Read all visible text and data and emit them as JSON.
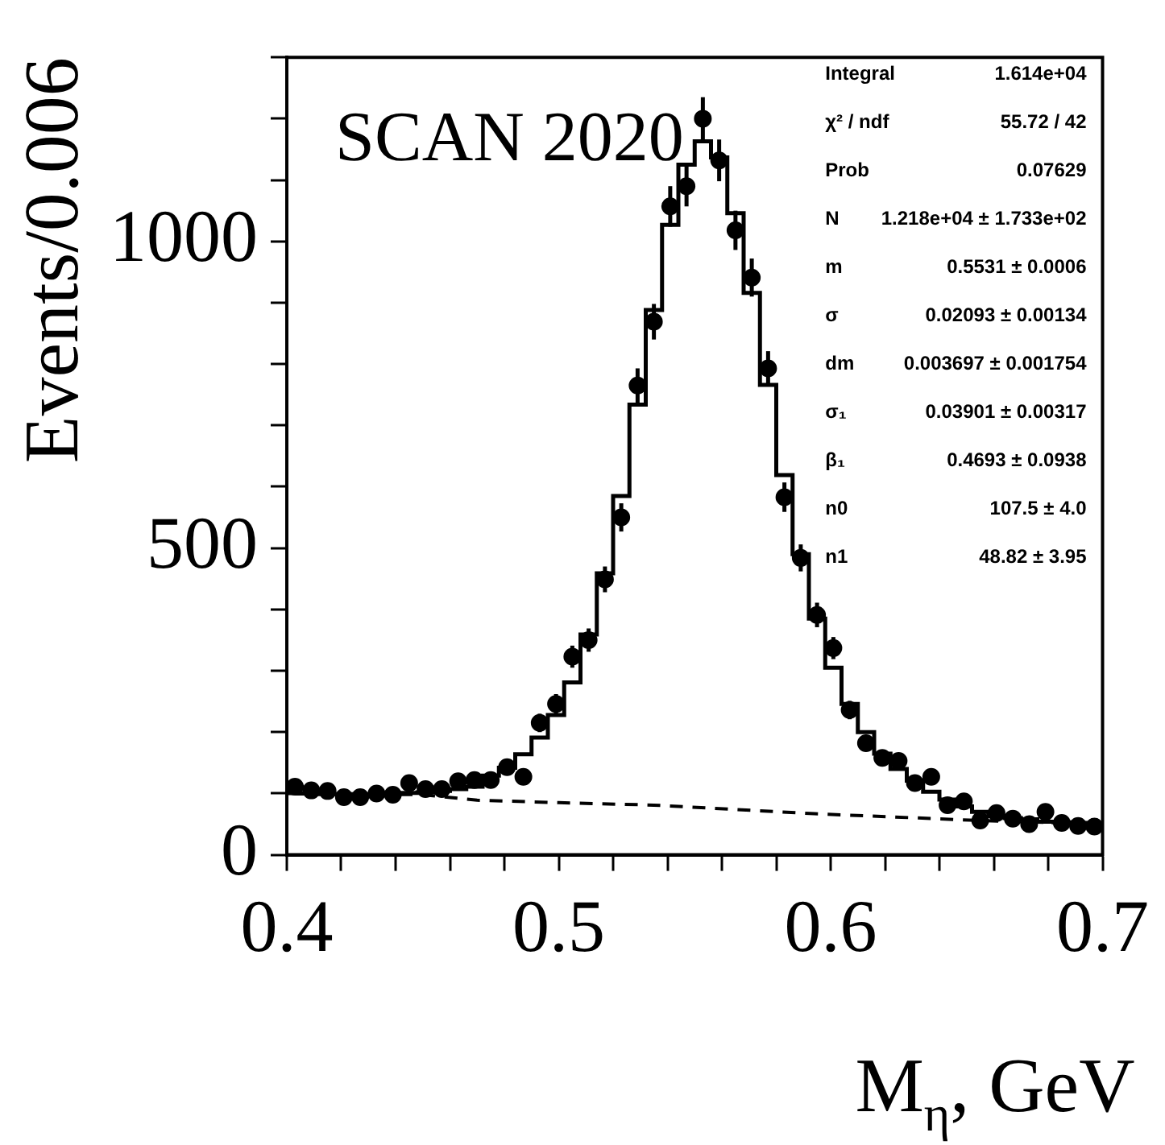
{
  "chart_data": {
    "type": "scatter",
    "xlabel": "M$_{η}$, GeV",
    "ylabel": "Events/0.006",
    "x": [
      0.403,
      0.409,
      0.415,
      0.421,
      0.427,
      0.433,
      0.439,
      0.445,
      0.451,
      0.457,
      0.463,
      0.469,
      0.475,
      0.481,
      0.487,
      0.493,
      0.499,
      0.505,
      0.511,
      0.517,
      0.523,
      0.529,
      0.535,
      0.541,
      0.547,
      0.553,
      0.559,
      0.565,
      0.571,
      0.577,
      0.583,
      0.589,
      0.595,
      0.601,
      0.607,
      0.613,
      0.619,
      0.625,
      0.631,
      0.637,
      0.643,
      0.649,
      0.655,
      0.661,
      0.667,
      0.673,
      0.679,
      0.685,
      0.691,
      0.697
    ],
    "series": [
      {
        "color": "#000000",
        "marker": "circle",
        "values": [
          111,
          105,
          104,
          94,
          94,
          100,
          98,
          117,
          107,
          107,
          120,
          122,
          122,
          143,
          127,
          215,
          246,
          323,
          350,
          449,
          550,
          765,
          869,
          1057,
          1090,
          1200,
          1132,
          1018,
          941,
          793,
          583,
          484,
          391,
          337,
          236,
          182,
          158,
          153,
          117,
          127,
          81,
          87,
          56,
          68,
          59,
          50,
          70,
          52,
          47,
          46
        ],
        "errors": [
          11,
          10,
          10,
          10,
          10,
          10,
          10,
          11,
          10,
          10,
          11,
          11,
          11,
          12,
          11,
          15,
          16,
          18,
          19,
          21,
          23,
          28,
          29,
          33,
          33,
          35,
          34,
          32,
          31,
          28,
          24,
          22,
          20,
          18,
          15,
          13,
          13,
          12,
          11,
          11,
          9,
          9,
          7,
          8,
          8,
          7,
          8,
          7,
          7,
          7
        ]
      },
      {
        "type": "step",
        "color": "#000000",
        "line_style": "solid",
        "values": [
          100,
          100,
          99,
          99,
          99,
          99,
          100,
          101,
          102,
          104,
          107,
          111,
          129,
          142,
          164,
          191,
          228,
          281,
          359,
          459,
          585,
          734,
          888,
          1027,
          1125,
          1163,
          1137,
          1046,
          916,
          766,
          619,
          490,
          385,
          305,
          246,
          200,
          165,
          140,
          121,
          103,
          90,
          79,
          70,
          63,
          60,
          58,
          54,
          53,
          52,
          51
        ]
      },
      {
        "type": "line",
        "color": "#000000",
        "line_style": "dashed",
        "marker": "none",
        "x": [
          0.4,
          0.45,
          0.47,
          0.5,
          0.535,
          0.594,
          0.654,
          0.7
        ],
        "values": [
          100,
          98,
          89,
          85,
          81,
          67,
          56,
          50
        ]
      }
    ],
    "xlim": [
      0.4,
      0.7
    ],
    "xticks": [
      0.4,
      {
        "value": 0.42,
        "label": null
      },
      {
        "value": 0.44,
        "label": null
      },
      {
        "value": 0.46,
        "label": null
      },
      {
        "value": 0.48,
        "label": null
      },
      0.5,
      {
        "value": 0.52,
        "label": null
      },
      {
        "value": 0.54,
        "label": null
      },
      {
        "value": 0.56,
        "label": null
      },
      {
        "value": 0.58,
        "label": null
      },
      0.6,
      {
        "value": 0.62,
        "label": null
      },
      {
        "value": 0.64,
        "label": null
      },
      {
        "value": 0.66,
        "label": null
      },
      {
        "value": 0.68,
        "label": null
      },
      0.7
    ],
    "ylim": [
      0,
      1300
    ],
    "yticks": [
      0,
      {
        "value": 100,
        "label": null
      },
      {
        "value": 200,
        "label": null
      },
      {
        "value": 300,
        "label": null
      },
      {
        "value": 400,
        "label": null
      },
      500,
      {
        "value": 600,
        "label": null
      },
      {
        "value": 700,
        "label": null
      },
      {
        "value": 800,
        "label": null
      },
      {
        "value": 900,
        "label": null
      },
      1000,
      {
        "value": 1100,
        "label": null
      },
      {
        "value": 1200,
        "label": null
      },
      {
        "value": 1300,
        "label": null
      }
    ],
    "grid": false,
    "legend": false,
    "annotations": [
      "SCAN 2020",
      "Integral",
      "1.614e+04",
      "χ² / ndf",
      "55.72 / 42",
      "Prob",
      "0.07629",
      "N",
      "1.218e+04 ± 1.733e+02",
      "m",
      "0.5531 ± 0.0006",
      "σ",
      "0.02093 ± 0.00134",
      "dm",
      "0.003697 ± 0.001754",
      "σ₁",
      "0.03901 ± 0.00317",
      "β₁",
      "0.4693 ± 0.0938",
      "n0",
      "107.5 ± 4.0",
      "n1",
      "48.82 ± 3.95"
    ]
  }
}
